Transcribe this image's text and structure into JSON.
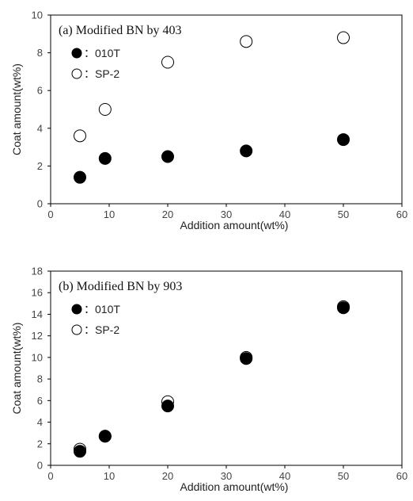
{
  "chart_data": [
    {
      "type": "scatter",
      "title": "(a) Modified BN by 403",
      "xlabel": "Addition amount(wt%)",
      "ylabel": "Coat amount(wt%)",
      "xlim": [
        0,
        60
      ],
      "ylim": [
        0,
        10
      ],
      "xticks": [
        0,
        10,
        20,
        30,
        40,
        50,
        60
      ],
      "yticks": [
        0,
        2,
        4,
        6,
        8,
        10
      ],
      "legend_position": "top-left",
      "series": [
        {
          "name": "：010T",
          "marker": "filled-circle",
          "x": [
            5,
            9.3,
            20,
            33.4,
            50
          ],
          "y": [
            1.4,
            2.4,
            2.5,
            2.8,
            3.4
          ]
        },
        {
          "name": "：SP-2",
          "marker": "open-circle",
          "x": [
            5,
            9.3,
            20,
            33.4,
            50
          ],
          "y": [
            3.6,
            5.0,
            7.5,
            8.6,
            8.8
          ]
        }
      ]
    },
    {
      "type": "scatter",
      "title": "(b) Modified BN by 903",
      "xlabel": "Addition amount(wt%)",
      "ylabel": "Coat amount(wt%)",
      "xlim": [
        0,
        60
      ],
      "ylim": [
        0,
        18
      ],
      "xticks": [
        0,
        10,
        20,
        30,
        40,
        50,
        60
      ],
      "yticks": [
        0,
        2,
        4,
        6,
        8,
        10,
        12,
        14,
        16,
        18
      ],
      "legend_position": "top-left",
      "series": [
        {
          "name": "：010T",
          "marker": "filled-circle",
          "x": [
            5,
            9.3,
            20,
            33.4,
            50
          ],
          "y": [
            1.3,
            2.7,
            5.5,
            9.9,
            14.6
          ]
        },
        {
          "name": "：SP-2",
          "marker": "open-circle",
          "x": [
            5,
            9.3,
            20,
            33.4,
            50
          ],
          "y": [
            1.5,
            2.7,
            5.9,
            10.0,
            14.7
          ]
        }
      ]
    }
  ],
  "colors": {
    "marker_fill": "#000000",
    "open_fill": "#ffffff",
    "marker_stroke": "#000000",
    "frame": "#000000"
  }
}
